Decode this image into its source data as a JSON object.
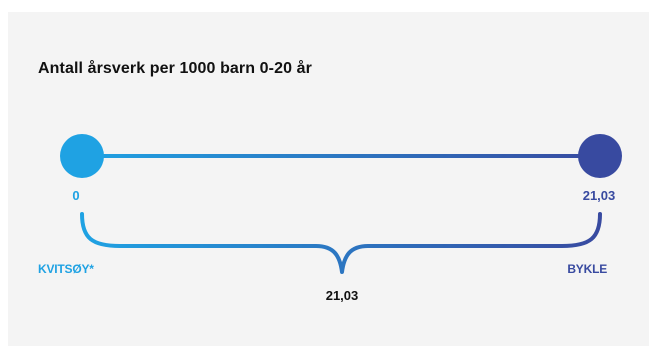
{
  "title": "Antall årsverk per 1000 barn 0-20 år",
  "min": {
    "value": "0",
    "name": "KVITSØY*"
  },
  "max": {
    "value": "21,03",
    "name": "BYKLE"
  },
  "range": "21,03",
  "colors": {
    "background": "#f4f4f4",
    "min_accent": "#1fa2e3",
    "max_accent": "#384aa0",
    "text": "#111111"
  }
}
